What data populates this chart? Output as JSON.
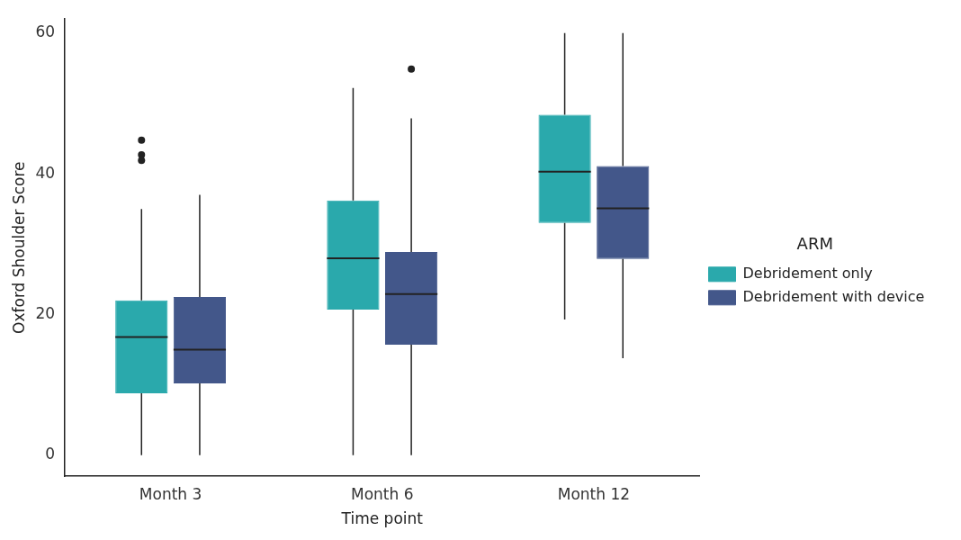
{
  "chart_data": {
    "type": "box",
    "xlabel": "Time point",
    "ylabel": "Oxford Shoulder Score",
    "legend_title": "ARM",
    "legend": "right",
    "grid": false,
    "categories": [
      "Month 3",
      "Month 6",
      "Month 12"
    ],
    "ylim": [
      -3,
      62
    ],
    "yticks": [
      0,
      20,
      40,
      60
    ],
    "series": [
      {
        "name": "Debridement only",
        "color": "#2aa9ac",
        "boxes": [
          {
            "low": 0,
            "q1": 8.8,
            "median": 16.8,
            "q3": 22,
            "high": 35,
            "outliers": [
              41.9,
              42.7,
              44.8
            ]
          },
          {
            "low": 0,
            "q1": 20.7,
            "median": 28,
            "q3": 36.2,
            "high": 52.2
          },
          {
            "low": 19.3,
            "q1": 33,
            "median": 40.3,
            "q3": 48.4,
            "high": 60
          }
        ]
      },
      {
        "name": "Debridement with device",
        "color": "#43578a",
        "boxes": [
          {
            "low": 0,
            "q1": 10.2,
            "median": 15,
            "q3": 22.5,
            "high": 37
          },
          {
            "low": 0,
            "q1": 15.7,
            "median": 22.9,
            "q3": 28.9,
            "high": 47.9,
            "outliers": [
              54.9
            ]
          },
          {
            "low": 13.8,
            "q1": 27.9,
            "median": 35.1,
            "q3": 41.1,
            "high": 60
          }
        ]
      }
    ]
  }
}
